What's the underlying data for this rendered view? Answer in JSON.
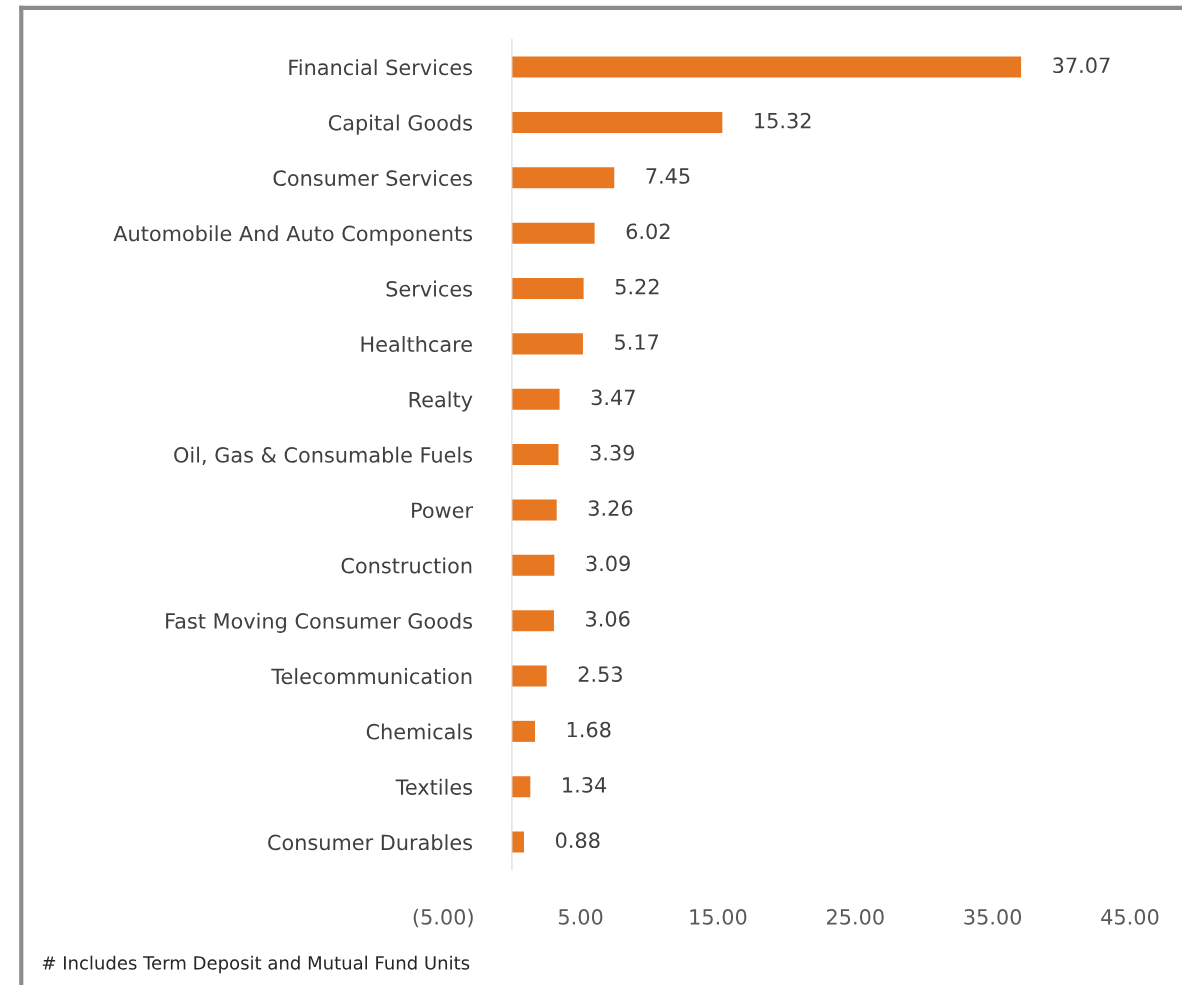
{
  "chart_data": {
    "type": "bar",
    "orientation": "horizontal",
    "categories": [
      "Financial Services",
      "Capital Goods",
      "Consumer Services",
      "Automobile And Auto Components",
      "Services",
      "Healthcare",
      "Realty",
      "Oil, Gas & Consumable Fuels",
      "Power",
      "Construction",
      "Fast Moving Consumer Goods",
      "Telecommunication",
      "Chemicals",
      "Textiles",
      "Consumer Durables"
    ],
    "values": [
      37.07,
      15.32,
      7.45,
      6.02,
      5.22,
      5.17,
      3.47,
      3.39,
      3.26,
      3.09,
      3.06,
      2.53,
      1.68,
      1.34,
      0.88
    ],
    "color": "#e87722",
    "data_labels": true,
    "xlim": [
      -5,
      45
    ],
    "xticks": [
      {
        "value": -5,
        "label": "(5.00)"
      },
      {
        "value": 5,
        "label": "5.00"
      },
      {
        "value": 15,
        "label": "15.00"
      },
      {
        "value": 25,
        "label": "25.00"
      },
      {
        "value": 35,
        "label": "35.00"
      },
      {
        "value": 45,
        "label": "45.00"
      }
    ],
    "grid": false,
    "legend": false,
    "annotations": [
      "# Includes Term Deposit and Mutual Fund Units"
    ]
  }
}
